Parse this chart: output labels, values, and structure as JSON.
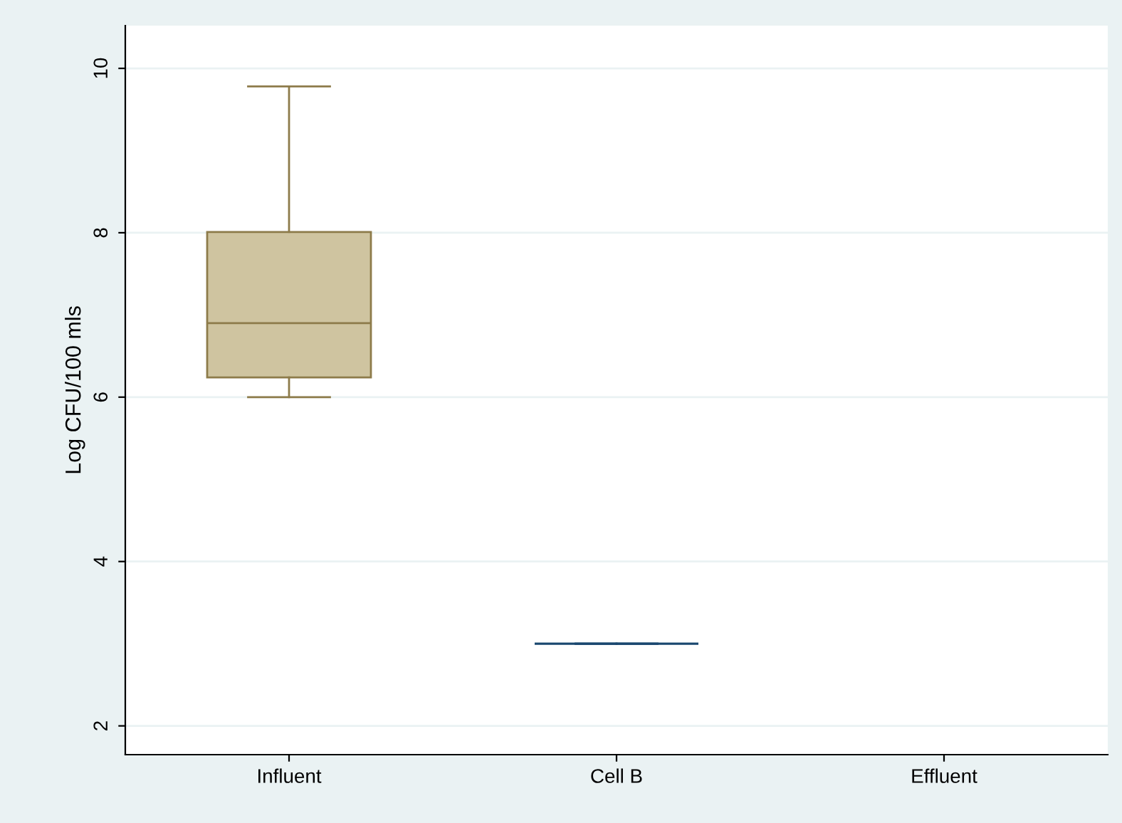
{
  "chart_data": {
    "type": "box",
    "ylabel": "Log CFU/100 mls",
    "categories": [
      "Influent",
      "Cell B",
      "Effluent"
    ],
    "series": [
      {
        "color": "#cfc4a0",
        "boxes": [
          {
            "low": 6.0,
            "q1": 6.24,
            "median": 6.9,
            "q3": 8.01,
            "high": 9.78
          },
          null,
          null
        ]
      },
      {
        "color": "#1a476f",
        "boxes": [
          null,
          {
            "low": 3.0,
            "q1": 3.0,
            "median": 3.0,
            "q3": 3.0,
            "high": 3.0
          },
          null
        ]
      }
    ],
    "ylim": [
      1.65,
      10.52
    ],
    "yticks": [
      2,
      4,
      6,
      8,
      10
    ],
    "grid": "y",
    "legend": false
  }
}
